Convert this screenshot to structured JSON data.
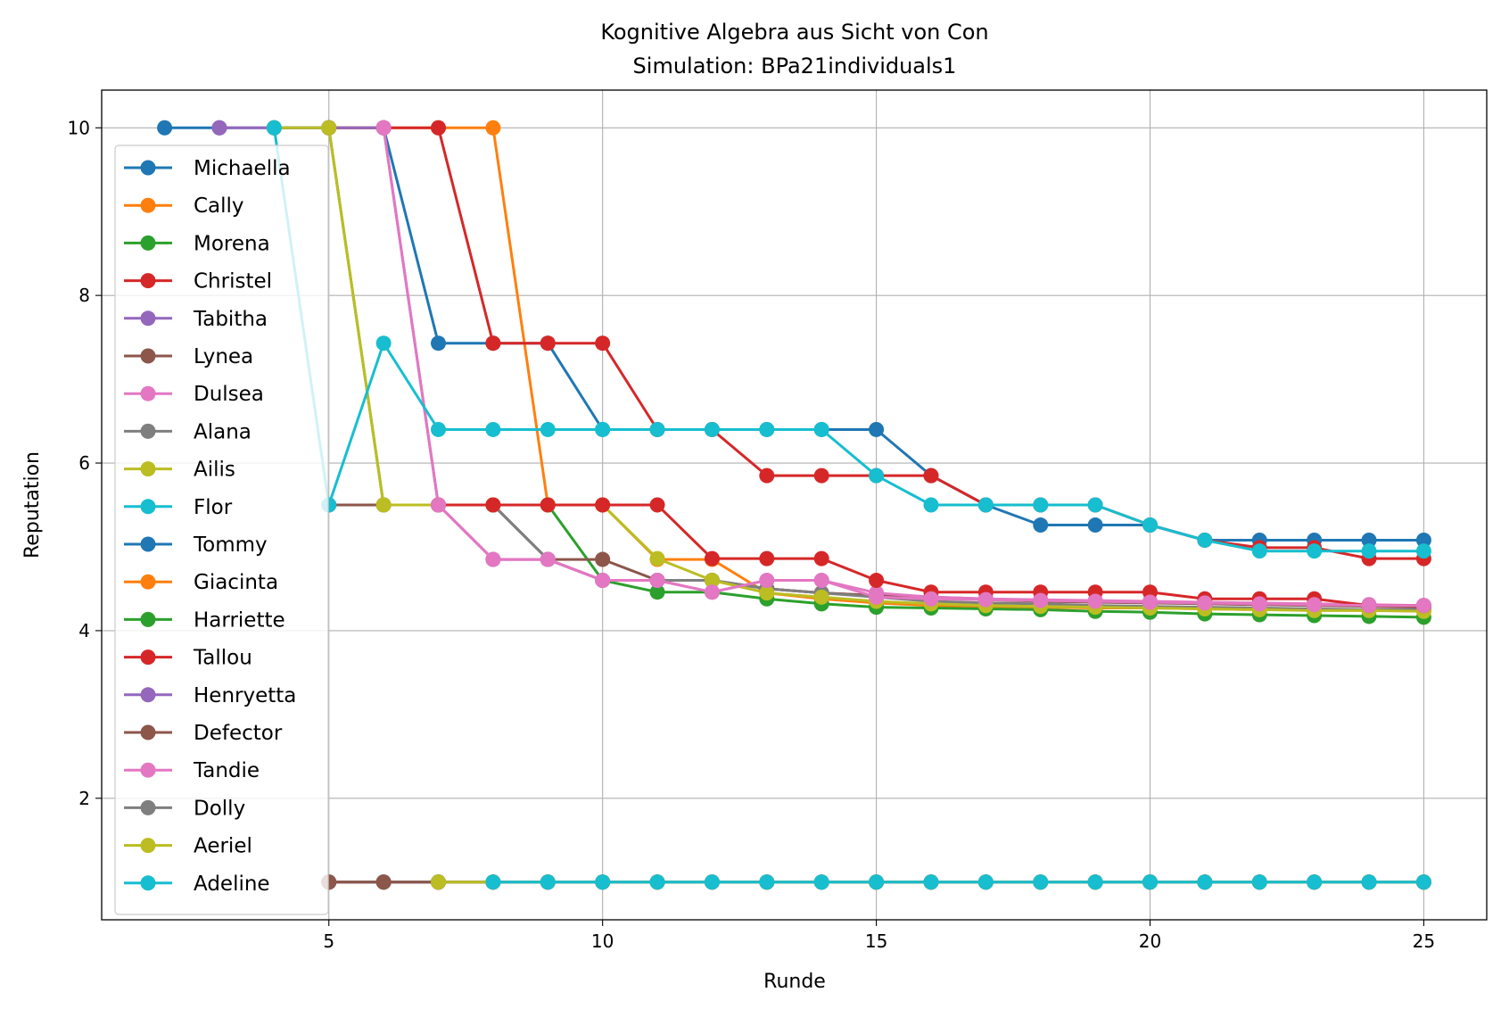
{
  "chart_data": {
    "type": "line",
    "title": "Kognitive Algebra aus Sicht von Con",
    "subtitle": "Simulation: BPa21individuals1",
    "xlabel": "Runde",
    "ylabel": "Reputation",
    "xlim": [
      0.85,
      26.15
    ],
    "ylim": [
      0.55,
      10.45
    ],
    "xticks": [
      5,
      10,
      15,
      20,
      25
    ],
    "yticks": [
      2,
      4,
      6,
      8,
      10
    ],
    "grid": true,
    "legend_position": "upper-left",
    "series": [
      {
        "name": "Michaella",
        "color": "#1f77b4",
        "x": [
          2,
          3,
          4,
          5,
          6,
          7,
          8,
          9,
          10,
          11,
          12,
          13,
          14,
          15,
          16,
          17,
          18,
          19,
          20,
          21,
          22,
          23,
          24,
          25
        ],
        "y": [
          10,
          10,
          10,
          10,
          10,
          7.43,
          7.43,
          7.43,
          6.4,
          6.4,
          6.4,
          6.4,
          6.4,
          6.4,
          5.85,
          5.5,
          5.26,
          5.26,
          5.26,
          5.08,
          5.08,
          5.08,
          5.08,
          5.08
        ]
      },
      {
        "name": "Cally",
        "color": "#ff7f0e",
        "x": [
          5,
          6,
          7,
          8,
          9,
          10,
          11,
          12,
          13,
          14,
          15,
          16,
          17,
          18,
          19,
          20,
          21,
          22,
          23,
          24,
          25
        ],
        "y": [
          10,
          10,
          10,
          10,
          5.5,
          5.5,
          4.85,
          4.85,
          4.45,
          4.38,
          4.33,
          4.3,
          4.29,
          4.28,
          4.27,
          4.27,
          4.26,
          4.25,
          4.25,
          4.24,
          4.24
        ]
      },
      {
        "name": "Morena",
        "color": "#2ca02c",
        "x": [
          4,
          5,
          6,
          7,
          8,
          9,
          10,
          11,
          12,
          13,
          14,
          15,
          16,
          17,
          18,
          19,
          20,
          21,
          22,
          23,
          24,
          25
        ],
        "y": [
          10,
          10,
          5.5,
          5.5,
          5.5,
          5.5,
          4.6,
          4.46,
          4.46,
          4.38,
          4.32,
          4.28,
          4.27,
          4.26,
          4.25,
          4.23,
          4.22,
          4.2,
          4.19,
          4.18,
          4.17,
          4.16
        ]
      },
      {
        "name": "Christel",
        "color": "#d62728",
        "x": [
          5,
          6,
          7,
          8,
          9,
          10,
          11,
          12,
          13,
          14,
          15,
          16,
          17,
          18,
          19,
          20,
          21,
          22,
          23,
          24,
          25
        ],
        "y": [
          10,
          10,
          10,
          7.43,
          7.43,
          7.43,
          6.4,
          6.4,
          5.85,
          5.85,
          5.85,
          5.85,
          5.5,
          5.5,
          5.5,
          5.26,
          5.08,
          4.99,
          4.99,
          4.86,
          4.86
        ]
      },
      {
        "name": "Tabitha",
        "color": "#9467bd",
        "x": [
          3,
          4,
          5,
          6,
          7,
          8,
          9,
          10,
          11,
          12,
          13,
          14,
          15,
          16,
          17,
          18,
          19,
          20,
          21,
          22,
          23,
          24,
          25
        ],
        "y": [
          10,
          10,
          10,
          10,
          5.5,
          4.85,
          4.85,
          4.6,
          4.6,
          4.6,
          4.5,
          4.45,
          4.42,
          4.4,
          4.38,
          4.36,
          4.35,
          4.34,
          4.33,
          4.32,
          4.31,
          4.3,
          4.3
        ]
      },
      {
        "name": "Lynea",
        "color": "#8c564b",
        "x": [
          5,
          6,
          7,
          8,
          9,
          10,
          11,
          12,
          13,
          14,
          15,
          16,
          17,
          18,
          19,
          20,
          21,
          22,
          23,
          24,
          25
        ],
        "y": [
          5.5,
          5.5,
          5.5,
          5.5,
          4.85,
          4.85,
          4.6,
          4.6,
          4.5,
          4.45,
          4.42,
          4.39,
          4.37,
          4.35,
          4.34,
          4.33,
          4.32,
          4.31,
          4.3,
          4.29,
          4.28
        ]
      },
      {
        "name": "Dulsea",
        "color": "#e377c2",
        "x": [
          6,
          7,
          8,
          9,
          10,
          11,
          12,
          13,
          14,
          15,
          16,
          17,
          18,
          19,
          20,
          21,
          22,
          23,
          24,
          25
        ],
        "y": [
          10,
          5.5,
          4.85,
          4.85,
          4.6,
          4.6,
          4.46,
          4.6,
          4.6,
          4.45,
          4.4,
          4.38,
          4.37,
          4.36,
          4.35,
          4.34,
          4.33,
          4.32,
          4.31,
          4.3
        ]
      },
      {
        "name": "Alana",
        "color": "#7f7f7f",
        "x": [
          7,
          8,
          9,
          10,
          11,
          12,
          13,
          14,
          15,
          16,
          17,
          18,
          19,
          20,
          21,
          22,
          23,
          24,
          25
        ],
        "y": [
          5.5,
          5.5,
          4.85,
          4.6,
          4.6,
          4.6,
          4.5,
          4.45,
          4.4,
          4.35,
          4.33,
          4.32,
          4.3,
          4.29,
          4.28,
          4.27,
          4.26,
          4.25,
          4.25
        ]
      },
      {
        "name": "Ailis",
        "color": "#bcbd22",
        "x": [
          4,
          5,
          6,
          7,
          8,
          9,
          10,
          11,
          12,
          13,
          14,
          15,
          16,
          17,
          18,
          19,
          20,
          21,
          22,
          23,
          24,
          25
        ],
        "y": [
          10,
          10,
          5.5,
          5.5,
          5.5,
          5.5,
          5.5,
          4.86,
          4.6,
          4.45,
          4.4,
          4.35,
          4.32,
          4.3,
          4.29,
          4.28,
          4.27,
          4.26,
          4.25,
          4.24,
          4.24,
          4.23
        ]
      },
      {
        "name": "Flor",
        "color": "#17becf",
        "x": [
          4,
          5,
          6,
          7,
          8,
          9,
          10,
          11,
          12,
          13,
          14,
          15,
          16,
          17,
          18,
          19,
          20,
          21,
          22,
          23,
          24,
          25
        ],
        "y": [
          10,
          5.5,
          7.43,
          6.4,
          6.4,
          6.4,
          6.4,
          6.4,
          6.4,
          6.4,
          6.4,
          5.85,
          5.5,
          5.5,
          5.5,
          5.5,
          5.26,
          5.08,
          4.95,
          4.95,
          4.95,
          4.95
        ]
      },
      {
        "name": "Tommy",
        "color": "#1f77b4",
        "x": [
          5,
          6,
          7,
          8,
          9,
          10,
          11,
          12,
          13,
          14,
          15,
          16,
          17,
          18,
          19,
          20,
          21,
          22,
          23,
          24,
          25
        ],
        "y": [
          1,
          1,
          1,
          1,
          1,
          1,
          1,
          1,
          1,
          1,
          1,
          1,
          1,
          1,
          1,
          1,
          1,
          1,
          1,
          1,
          1
        ]
      },
      {
        "name": "Giacinta",
        "color": "#ff7f0e",
        "x": [
          5,
          6,
          7,
          8,
          9,
          10,
          11,
          12,
          13,
          14,
          15,
          16,
          17,
          18,
          19,
          20,
          21,
          22,
          23,
          24,
          25
        ],
        "y": [
          1,
          1,
          1,
          1,
          1,
          1,
          1,
          1,
          1,
          1,
          1,
          1,
          1,
          1,
          1,
          1,
          1,
          1,
          1,
          1,
          1
        ]
      },
      {
        "name": "Harriette",
        "color": "#2ca02c",
        "x": [
          5,
          6,
          7,
          8,
          9,
          10,
          11,
          12,
          13,
          14,
          15,
          16,
          17,
          18,
          19,
          20,
          21,
          22,
          23,
          24,
          25
        ],
        "y": [
          1,
          1,
          1,
          1,
          1,
          1,
          1,
          1,
          1,
          1,
          1,
          1,
          1,
          1,
          1,
          1,
          1,
          1,
          1,
          1,
          1
        ]
      },
      {
        "name": "Tallou",
        "color": "#d62728",
        "x": [
          7,
          8,
          9,
          10,
          11,
          12,
          13,
          14,
          15,
          16,
          17,
          18,
          19,
          20,
          21,
          22,
          23,
          24,
          25
        ],
        "y": [
          5.5,
          5.5,
          5.5,
          5.5,
          5.5,
          4.86,
          4.86,
          4.86,
          4.6,
          4.46,
          4.46,
          4.46,
          4.46,
          4.46,
          4.38,
          4.38,
          4.38,
          4.3,
          4.3
        ]
      },
      {
        "name": "Henryetta",
        "color": "#9467bd",
        "x": [
          5,
          6,
          7,
          8,
          9,
          10,
          11,
          12,
          13,
          14,
          15,
          16,
          17,
          18,
          19,
          20,
          21,
          22,
          23,
          24,
          25
        ],
        "y": [
          1,
          1,
          1,
          1,
          1,
          1,
          1,
          1,
          1,
          1,
          1,
          1,
          1,
          1,
          1,
          1,
          1,
          1,
          1,
          1,
          1
        ]
      },
      {
        "name": "Defector",
        "color": "#8c564b",
        "x": [
          5,
          6,
          7,
          8,
          9,
          10,
          11,
          12,
          13,
          14,
          15,
          16,
          17,
          18,
          19,
          20,
          21,
          22,
          23,
          24,
          25
        ],
        "y": [
          1,
          1,
          1,
          1,
          1,
          1,
          1,
          1,
          1,
          1,
          1,
          1,
          1,
          1,
          1,
          1,
          1,
          1,
          1,
          1,
          1
        ]
      },
      {
        "name": "Tandie",
        "color": "#e377c2",
        "x": [
          7,
          8,
          9,
          10,
          11,
          12,
          13,
          14,
          15,
          16,
          17,
          18,
          19,
          20,
          21,
          22,
          23,
          24,
          25
        ],
        "y": [
          5.5,
          4.85,
          4.85,
          4.6,
          4.6,
          4.46,
          4.6,
          4.6,
          4.4,
          4.38,
          4.37,
          4.36,
          4.35,
          4.34,
          4.33,
          4.32,
          4.31,
          4.3,
          4.3
        ]
      },
      {
        "name": "Dolly",
        "color": "#7f7f7f",
        "x": [
          7,
          8,
          9,
          10,
          11,
          12,
          13,
          14,
          15,
          16,
          17,
          18,
          19,
          20,
          21,
          22,
          23,
          24,
          25
        ],
        "y": [
          1,
          1,
          1,
          1,
          1,
          1,
          1,
          1,
          1,
          1,
          1,
          1,
          1,
          1,
          1,
          1,
          1,
          1,
          1
        ]
      },
      {
        "name": "Aeriel",
        "color": "#bcbd22",
        "x": [
          7,
          8,
          9,
          10,
          11,
          12,
          13,
          14,
          15,
          16,
          17,
          18,
          19,
          20,
          21,
          22,
          23,
          24,
          25
        ],
        "y": [
          1,
          1,
          1,
          1,
          1,
          1,
          1,
          1,
          1,
          1,
          1,
          1,
          1,
          1,
          1,
          1,
          1,
          1,
          1
        ]
      },
      {
        "name": "Adeline",
        "color": "#17becf",
        "x": [
          8,
          9,
          10,
          11,
          12,
          13,
          14,
          15,
          16,
          17,
          18,
          19,
          20,
          21,
          22,
          23,
          24,
          25
        ],
        "y": [
          1,
          1,
          1,
          1,
          1,
          1,
          1,
          1,
          1,
          1,
          1,
          1,
          1,
          1,
          1,
          1,
          1,
          1
        ]
      }
    ]
  }
}
